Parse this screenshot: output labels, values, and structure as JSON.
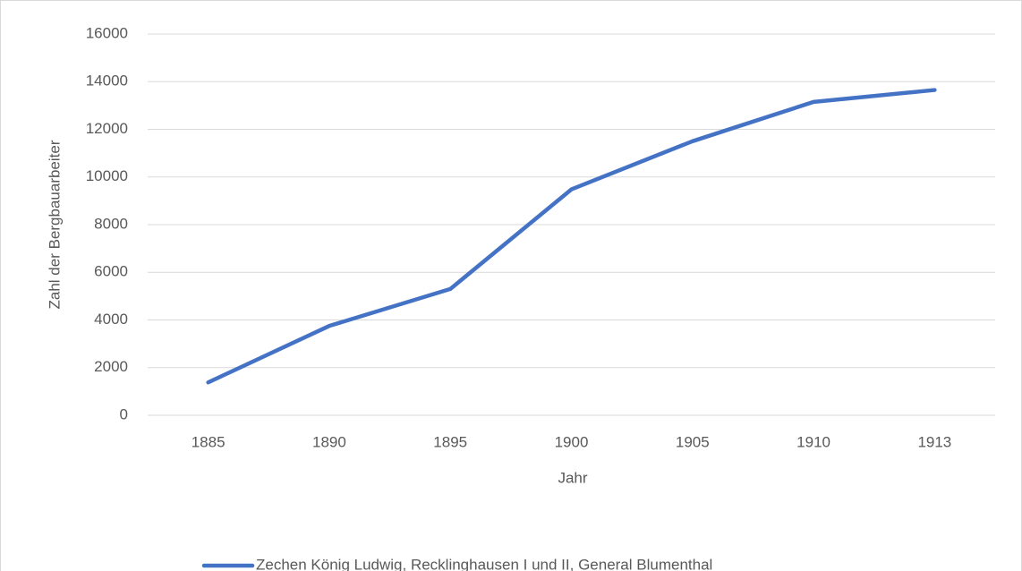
{
  "chart_data": {
    "type": "line",
    "categories": [
      "1885",
      "1890",
      "1895",
      "1900",
      "1905",
      "1910",
      "1913"
    ],
    "series": [
      {
        "name": "Zechen König Ludwig, Recklinghausen I und II, General Blumenthal",
        "color": "#4472c4",
        "values": [
          1380,
          3750,
          5300,
          9480,
          11500,
          13150,
          13650
        ]
      }
    ],
    "xlabel": "Jahr",
    "ylabel": "Zahl der Bergbauarbeiter",
    "ylim": [
      0,
      16000
    ],
    "yticks": [
      0,
      2000,
      4000,
      6000,
      8000,
      10000,
      12000,
      14000,
      16000
    ],
    "grid": true,
    "legend": "bottom"
  }
}
